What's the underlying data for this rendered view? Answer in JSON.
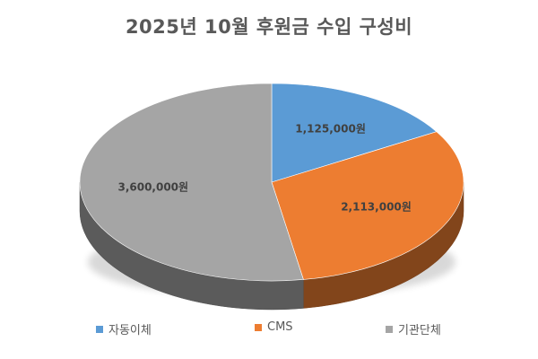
{
  "chart_data": {
    "type": "pie",
    "title": "2025년 10월 후원금 수입 구성비",
    "categories": [
      "자동이체",
      "CMS",
      "기관단체"
    ],
    "values": [
      1125000,
      2113000,
      3600000
    ],
    "data_labels": [
      "1,125,000원",
      "2,113,000원",
      "3,600,000원"
    ],
    "colors": [
      "#5b9bd5",
      "#ed7d31",
      "#a5a5a5"
    ],
    "style": "3d",
    "legend_position": "bottom"
  }
}
